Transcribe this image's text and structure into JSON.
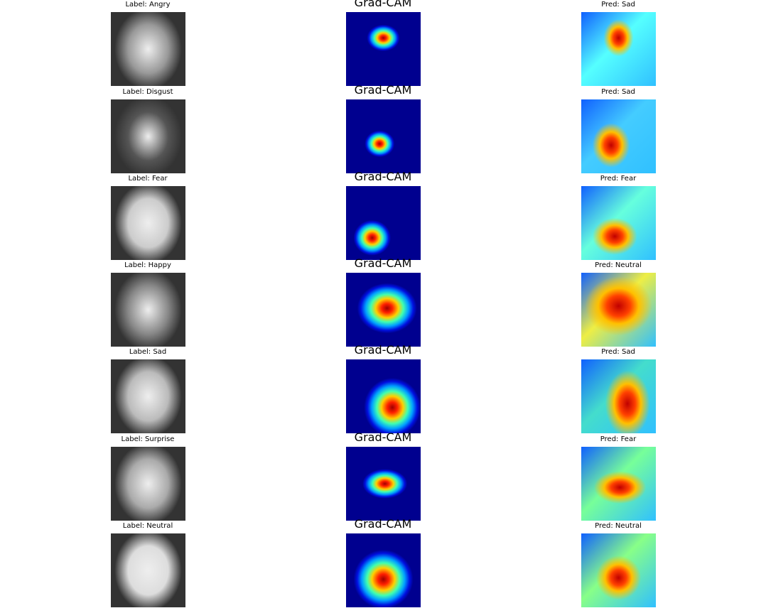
{
  "rows": [
    {
      "label": "Label: Angry",
      "cam_title": "Grad-CAM",
      "pred": "Pred: Sad"
    },
    {
      "label": "Label: Disgust",
      "cam_title": "Grad-CAM",
      "pred": "Pred: Sad"
    },
    {
      "label": "Label: Fear",
      "cam_title": "Grad-CAM",
      "pred": "Pred: Fear"
    },
    {
      "label": "Label: Happy",
      "cam_title": "Grad-CAM",
      "pred": "Pred: Neutral"
    },
    {
      "label": "Label: Sad",
      "cam_title": "Grad-CAM",
      "pred": "Pred: Sad"
    },
    {
      "label": "Label: Surprise",
      "cam_title": "Grad-CAM",
      "pred": "Pred: Fear"
    },
    {
      "label": "Label: Neutral",
      "cam_title": "Grad-CAM",
      "pred": "Pred: Neutral"
    }
  ]
}
